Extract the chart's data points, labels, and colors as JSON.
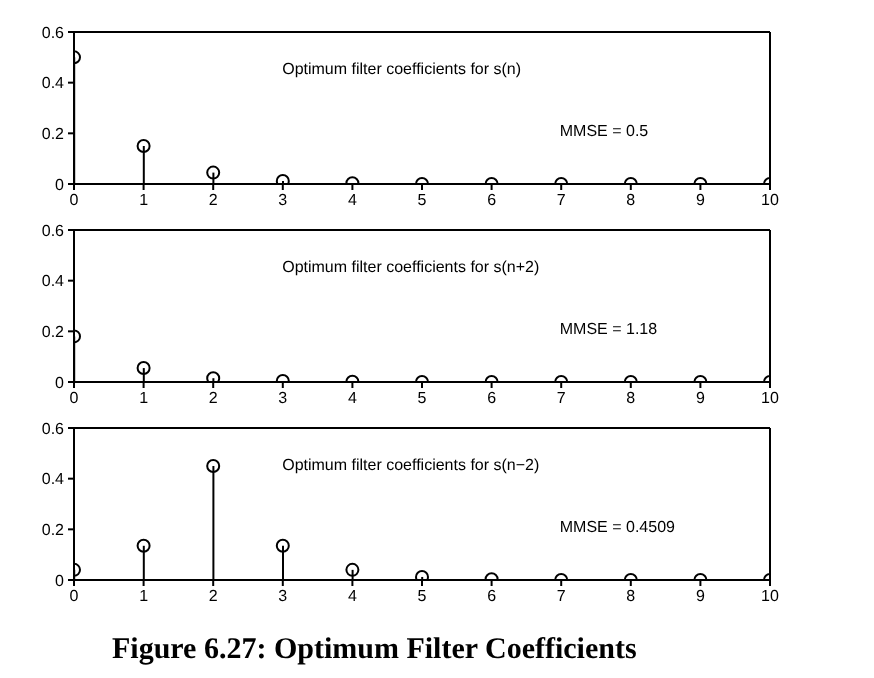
{
  "chart_data": [
    {
      "type": "lollipop",
      "x": [
        0,
        1,
        2,
        3,
        4,
        5,
        6,
        7,
        8,
        9,
        10
      ],
      "values": [
        0.5,
        0.15,
        0.045,
        0.012,
        0.003,
        0,
        0,
        0,
        0,
        0,
        0
      ],
      "color": "#000000",
      "marker": "circle",
      "xlim": [
        0,
        10
      ],
      "xticks": [
        0,
        1,
        2,
        3,
        4,
        5,
        6,
        7,
        8,
        9,
        10
      ],
      "ylim": [
        0,
        0.6
      ],
      "yticks": [
        0,
        0.2,
        0.4,
        0.6
      ],
      "grid": false,
      "annotations": [
        "Optimum filter coefficients for s(n)",
        "MMSE = 0.5"
      ]
    },
    {
      "type": "lollipop",
      "x": [
        0,
        1,
        2,
        3,
        4,
        5,
        6,
        7,
        8,
        9,
        10
      ],
      "values": [
        0.18,
        0.055,
        0.015,
        0.004,
        0.001,
        0,
        0,
        0,
        0,
        0,
        0
      ],
      "color": "#000000",
      "marker": "circle",
      "xlim": [
        0,
        10
      ],
      "xticks": [
        0,
        1,
        2,
        3,
        4,
        5,
        6,
        7,
        8,
        9,
        10
      ],
      "ylim": [
        0,
        0.6
      ],
      "yticks": [
        0,
        0.2,
        0.4,
        0.6
      ],
      "grid": false,
      "annotations": [
        "Optimum filter coefficients for s(n+2)",
        "MMSE = 1.18"
      ]
    },
    {
      "type": "lollipop",
      "x": [
        0,
        1,
        2,
        3,
        4,
        5,
        6,
        7,
        8,
        9,
        10
      ],
      "values": [
        0.04,
        0.135,
        0.45,
        0.135,
        0.04,
        0.012,
        0.003,
        0,
        0,
        0,
        0
      ],
      "color": "#000000",
      "marker": "circle",
      "xlim": [
        0,
        10
      ],
      "xticks": [
        0,
        1,
        2,
        3,
        4,
        5,
        6,
        7,
        8,
        9,
        10
      ],
      "ylim": [
        0,
        0.6
      ],
      "yticks": [
        0,
        0.2,
        0.4,
        0.6
      ],
      "grid": false,
      "annotations": [
        "Optimum filter coefficients for s(n−2)",
        "MMSE = 0.4509",
        "Figure 6.27: Optimum Filter Coefficients"
      ]
    }
  ]
}
